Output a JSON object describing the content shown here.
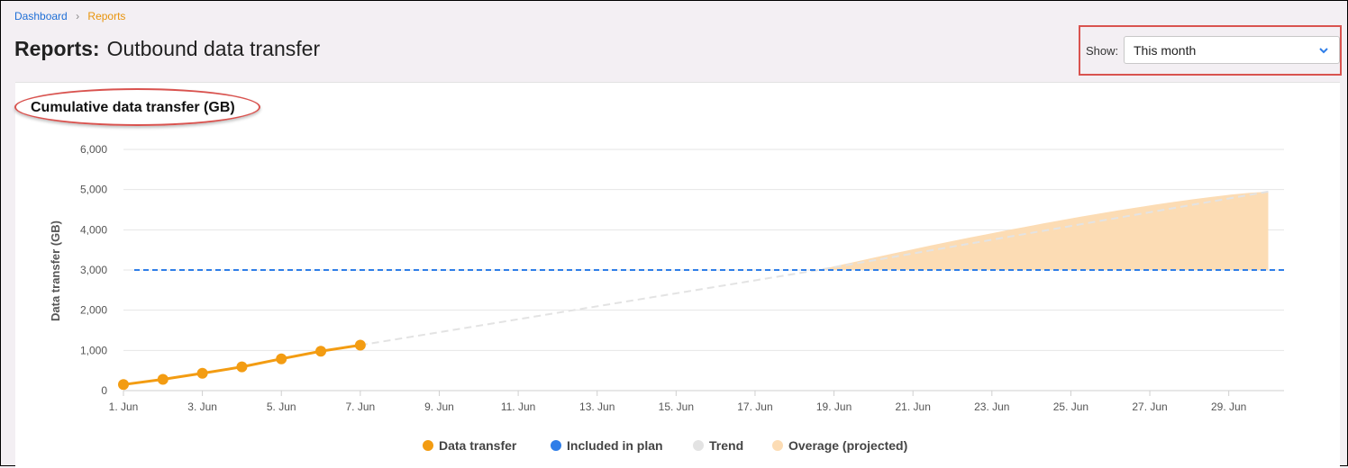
{
  "breadcrumb": {
    "home": "Dashboard",
    "separator": "›",
    "current": "Reports"
  },
  "page": {
    "title_prefix": "Reports:",
    "title": "Outbound data transfer"
  },
  "filter": {
    "label": "Show:",
    "value": "This month",
    "chevron_icon": "chevron-down-icon"
  },
  "card": {
    "title": "Cumulative data transfer (GB)"
  },
  "colors": {
    "data": "#f39c12",
    "plan": "#2f7ee8",
    "trend": "#e3e3e3",
    "overage": "#fcdcb4"
  },
  "chart_data": {
    "type": "line",
    "ylabel": "Data transfer (GB)",
    "ylim": [
      0,
      6000
    ],
    "yticks": [
      "0",
      "1,000",
      "2,000",
      "3,000",
      "4,000",
      "5,000",
      "6,000"
    ],
    "xticks": [
      "1. Jun",
      "3. Jun",
      "5. Jun",
      "7. Jun",
      "9. Jun",
      "11. Jun",
      "13. Jun",
      "15. Jun",
      "17. Jun",
      "19. Jun",
      "21. Jun",
      "23. Jun",
      "25. Jun",
      "27. Jun",
      "29. Jun"
    ],
    "series": [
      {
        "name": "Data transfer",
        "x": [
          1,
          2,
          3,
          4,
          5,
          6,
          7
        ],
        "values": [
          150,
          280,
          430,
          590,
          790,
          980,
          1130
        ]
      },
      {
        "name": "Included in plan",
        "value": 3000
      },
      {
        "name": "Trend",
        "x": [
          7,
          18.6,
          30
        ],
        "values": [
          1130,
          3000,
          4950
        ]
      },
      {
        "name": "Overage (projected)",
        "x": [
          18.6,
          30
        ],
        "from": 3000,
        "to": 4950
      }
    ],
    "legend": [
      "Data transfer",
      "Included in plan",
      "Trend",
      "Overage (projected)"
    ]
  }
}
